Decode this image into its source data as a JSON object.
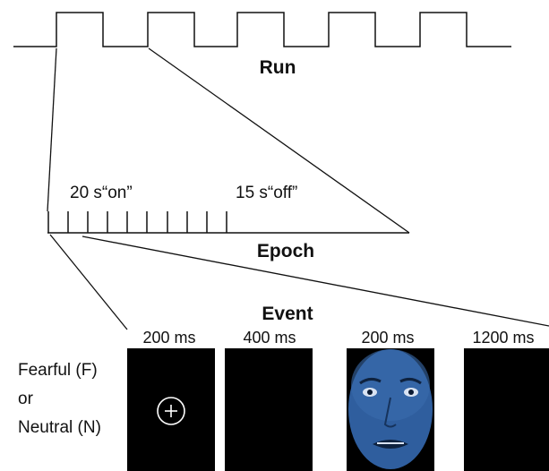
{
  "run": {
    "label": "Run"
  },
  "epoch": {
    "label": "Epoch",
    "on_label": "20 s“on”",
    "off_label": "15 s“off”"
  },
  "event": {
    "label": "Event",
    "durations": [
      "200 ms",
      "400 ms",
      "200 ms",
      "1200 ms"
    ],
    "condition_lines": [
      "Fearful (F)",
      "or",
      "Neutral (N)"
    ],
    "fixation_symbol": "+"
  },
  "colors": {
    "line": "#111111",
    "screen": "#000000",
    "fixation": "#ffffff",
    "face_tint": "#2f5e9e"
  }
}
